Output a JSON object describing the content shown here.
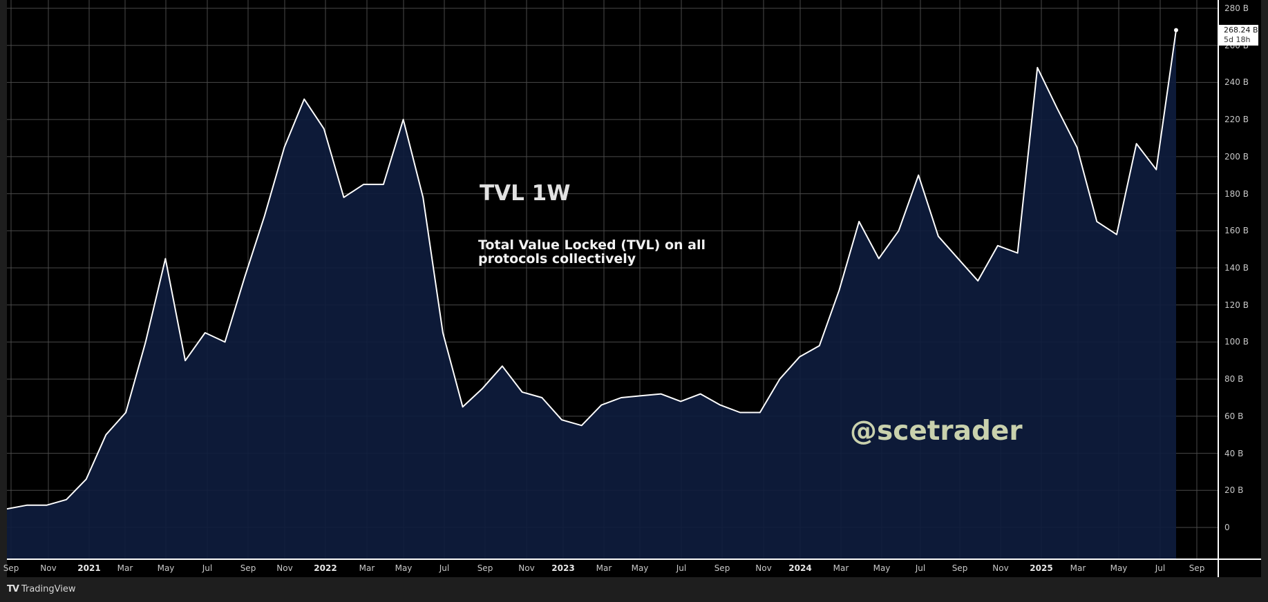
{
  "chart_data": {
    "type": "area",
    "title": "TVL 1W",
    "subtitle": "Total Value Locked (TVL) on all protocols collectively",
    "watermark": "@scetrader",
    "xlabel": "",
    "ylabel": "",
    "y_unit": "B",
    "ylim": [
      -14,
      281
    ],
    "grid": true,
    "legend_position": "none",
    "last_value_label": "268.24 B",
    "bar_countdown": "5d 18h",
    "y_ticks": [
      "280 B",
      "260 B",
      "240 B",
      "220 B",
      "200 B",
      "180 B",
      "160 B",
      "140 B",
      "120 B",
      "100 B",
      "80 B",
      "60 B",
      "40 B",
      "20 B",
      "0"
    ],
    "x_ticks": [
      "Sep",
      "Nov",
      "2021",
      "Mar",
      "May",
      "Jul",
      "Sep",
      "Nov",
      "2022",
      "Mar",
      "May",
      "Jul",
      "Sep",
      "Nov",
      "2023",
      "Mar",
      "May",
      "Jul",
      "Sep",
      "Nov",
      "2024",
      "Mar",
      "May",
      "Jul",
      "Sep",
      "Nov",
      "2025",
      "Mar",
      "May",
      "Jul",
      "Sep"
    ],
    "series": [
      {
        "name": "TVL (B)",
        "x": [
          "2020-09",
          "2020-10",
          "2020-11",
          "2020-12",
          "2021-01",
          "2021-02",
          "2021-03",
          "2021-04",
          "2021-05",
          "2021-05b",
          "2021-06",
          "2021-07",
          "2021-08",
          "2021-09",
          "2021-10",
          "2021-11",
          "2021-12",
          "2022-01",
          "2022-02",
          "2022-03",
          "2022-04",
          "2022-05",
          "2022-05b",
          "2022-06",
          "2022-07",
          "2022-08",
          "2022-09",
          "2022-10",
          "2022-11",
          "2023-01",
          "2023-02",
          "2023-03",
          "2023-04",
          "2023-05",
          "2023-06",
          "2023-07",
          "2023-08",
          "2023-09",
          "2023-10",
          "2023-11",
          "2023-12",
          "2024-01",
          "2024-02",
          "2024-03",
          "2024-04",
          "2024-05",
          "2024-06",
          "2024-07",
          "2024-08",
          "2024-09",
          "2024-10",
          "2024-11",
          "2024-12",
          "2025-01",
          "2025-02",
          "2025-03",
          "2025-04",
          "2025-05",
          "2025-06",
          "2025-07"
        ],
        "values": [
          10,
          12,
          12,
          15,
          26,
          50,
          62,
          100,
          145,
          90,
          105,
          100,
          135,
          168,
          205,
          231,
          215,
          178,
          185,
          185,
          220,
          178,
          105,
          65,
          75,
          87,
          73,
          70,
          58,
          55,
          66,
          70,
          71,
          72,
          68,
          72,
          66,
          62,
          62,
          80,
          92,
          98,
          128,
          165,
          145,
          160,
          190,
          157,
          145,
          133,
          152,
          148,
          248,
          226,
          205,
          165,
          158,
          207,
          193,
          268.24
        ]
      }
    ],
    "colors": {
      "line": "#ffffff",
      "fill": "#0e1c3d",
      "background": "#000000",
      "grid": "#4a4a4a"
    }
  },
  "footer": {
    "brand": "TradingView",
    "brand_mark": "TV"
  }
}
